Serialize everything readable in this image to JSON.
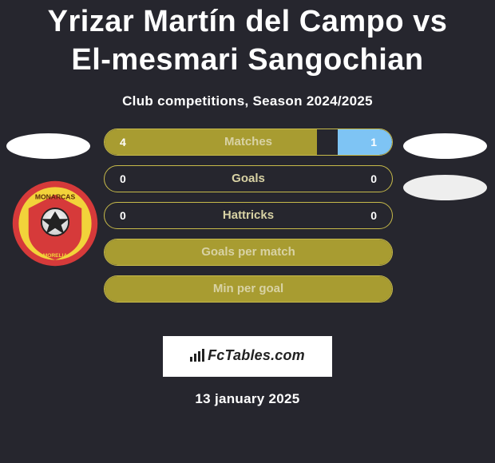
{
  "title": "Yrizar Martín del Campo vs El-mesmari Sangochian",
  "subtitle": "Club competitions, Season 2024/2025",
  "date": "13 january 2025",
  "footer_brand": "FcTables.com",
  "colors": {
    "background": "#26262e",
    "text": "#ffffff",
    "olive": "#a89c31",
    "olive_fill": "#a89c31",
    "olive_border": "#c7ba4a",
    "sky": "#7ec4f4",
    "label_muted": "#d8d2a4",
    "footer_box_bg": "#ffffff",
    "footer_box_fg": "#222222",
    "avatar_bg": "#ffffff",
    "avatar_bg2": "#eeeeee"
  },
  "fonts": {
    "title_size": 38,
    "title_weight": 800,
    "subtitle_size": 17,
    "subtitle_weight": 700,
    "bar_label_size": 15,
    "value_size": 14,
    "footer_size": 18,
    "date_size": 17
  },
  "bars": [
    {
      "label": "Matches",
      "left_value": "4",
      "right_value": "1",
      "left_frac": 0.74,
      "right_frac": 0.19,
      "left_color": "#a89c31",
      "right_color": "#7ec4f4",
      "border_color": "#c7ba4a",
      "label_color": "#d8d2a4"
    },
    {
      "label": "Goals",
      "left_value": "0",
      "right_value": "0",
      "left_frac": 0,
      "right_frac": 0,
      "left_color": "#a89c31",
      "right_color": "#7ec4f4",
      "border_color": "#c7ba4a",
      "label_color": "#d8d2a4"
    },
    {
      "label": "Hattricks",
      "left_value": "0",
      "right_value": "0",
      "left_frac": 0,
      "right_frac": 0,
      "left_color": "#a89c31",
      "right_color": "#7ec4f4",
      "border_color": "#c7ba4a",
      "label_color": "#d8d2a4"
    },
    {
      "label": "Goals per match",
      "left_value": "",
      "right_value": "",
      "left_frac": 1.0,
      "right_frac": 0,
      "left_color": "#a89c31",
      "right_color": "#7ec4f4",
      "border_color": "#c7ba4a",
      "label_color": "#d8d2a4"
    },
    {
      "label": "Min per goal",
      "left_value": "",
      "right_value": "",
      "left_frac": 1.0,
      "right_frac": 0,
      "left_color": "#a89c31",
      "right_color": "#7ec4f4",
      "border_color": "#c7ba4a",
      "label_color": "#d8d2a4"
    }
  ]
}
